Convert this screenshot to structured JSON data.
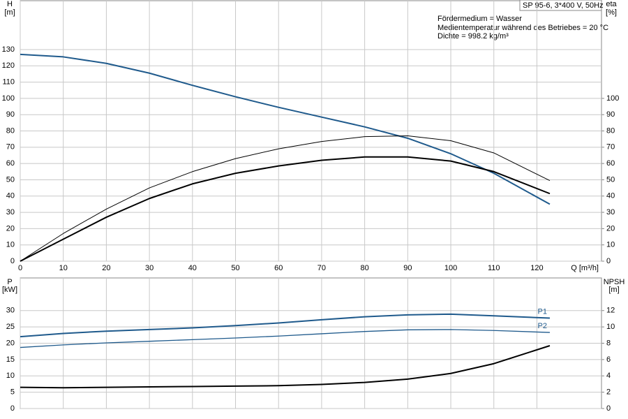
{
  "chart_data": [
    {
      "type": "line",
      "box_title": "SP 95-6, 3*400 V, 50Hz",
      "annotations": [
        "Fördermedium = Wasser",
        "Medientemperatur während des Betriebes = 20 °C",
        "Dichte = 998.2 kg/m³"
      ],
      "ylabel": "H",
      "yunit": "[m]",
      "y2label": "eta",
      "y2unit": "[%]",
      "xlabel": "Q [m³/h]",
      "x": [
        0,
        10,
        20,
        30,
        40,
        50,
        60,
        70,
        80,
        90,
        100,
        110,
        123
      ],
      "xlim": [
        0,
        135
      ],
      "ylim": [
        0,
        160
      ],
      "y2lim": [
        0,
        160
      ],
      "xticks": [
        0,
        10,
        20,
        30,
        40,
        50,
        60,
        70,
        80,
        90,
        100,
        110,
        120
      ],
      "yticks": [
        0,
        10,
        20,
        30,
        40,
        50,
        60,
        70,
        80,
        90,
        100,
        110,
        120,
        130
      ],
      "y2ticks": [
        0,
        10,
        20,
        30,
        40,
        50,
        60,
        70,
        80,
        90,
        100
      ],
      "grid": true,
      "series": [
        {
          "color": "#1f5a8c",
          "width": 2,
          "values": [
            127,
            125.5,
            121.5,
            115.5,
            108,
            101,
            94.5,
            88.5,
            82.5,
            75.5,
            66,
            54,
            35
          ]
        },
        {
          "color": "#000000",
          "width": 1,
          "axis": "y2",
          "values": [
            0,
            17,
            32,
            45,
            55,
            63,
            69,
            73.5,
            76.5,
            77,
            74,
            66.5,
            49.5
          ]
        },
        {
          "color": "#000000",
          "width": 2,
          "axis": "y2",
          "values": [
            0,
            13.5,
            27,
            38.5,
            47.5,
            54,
            58.5,
            62,
            64,
            64,
            61.5,
            55,
            41.5
          ]
        }
      ]
    },
    {
      "type": "line",
      "ylabel": "P",
      "yunit": "[kW]",
      "y2label": "NPSH",
      "y2unit": "[m]",
      "x": [
        0,
        10,
        20,
        30,
        40,
        50,
        60,
        70,
        80,
        90,
        100,
        110,
        123
      ],
      "xlim": [
        0,
        135
      ],
      "ylim": [
        0,
        40
      ],
      "y2lim": [
        0,
        16
      ],
      "yticks": [
        0,
        5,
        10,
        15,
        20,
        25,
        30
      ],
      "y2ticks": [
        0,
        2,
        4,
        6,
        8,
        10,
        12
      ],
      "grid": true,
      "series": [
        {
          "name": "P1",
          "color": "#1f5a8c",
          "width": 2,
          "values": [
            22,
            23,
            23.7,
            24.2,
            24.7,
            25.4,
            26.2,
            27.2,
            28.1,
            28.7,
            28.9,
            28.4,
            27.7
          ]
        },
        {
          "name": "P2",
          "color": "#1f5a8c",
          "width": 1.3,
          "values": [
            18.7,
            19.5,
            20.1,
            20.6,
            21.1,
            21.6,
            22.2,
            22.9,
            23.6,
            24.1,
            24.2,
            23.9,
            23.3
          ]
        },
        {
          "color": "#000000",
          "width": 2,
          "axis": "y2",
          "values": [
            2.6,
            2.55,
            2.6,
            2.65,
            2.7,
            2.75,
            2.8,
            2.95,
            3.2,
            3.6,
            4.3,
            5.5,
            7.7
          ]
        }
      ]
    }
  ]
}
